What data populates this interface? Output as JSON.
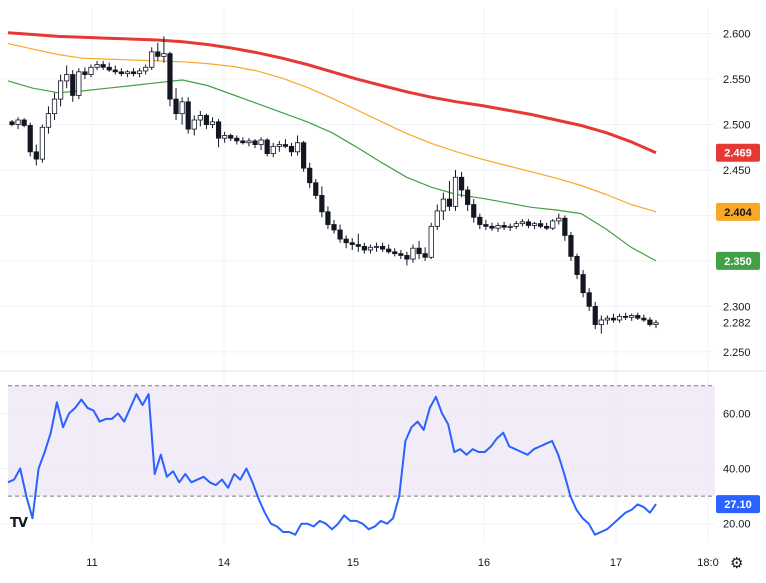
{
  "chart_data": [
    {
      "type": "candlestick",
      "title": "",
      "ylim": [
        2.23,
        2.615
      ],
      "y_ticks": [
        "2.600",
        "2.550",
        "2.500",
        "2.450",
        "2.400",
        "2.350",
        "2.300",
        "2.282",
        "2.250"
      ],
      "x_ticks": [
        "11",
        "14",
        "15",
        "16",
        "17",
        "18:0"
      ],
      "candles": [
        [
          2.503,
          2.505,
          2.498,
          2.5
        ],
        [
          2.5,
          2.508,
          2.495,
          2.505
        ],
        [
          2.505,
          2.507,
          2.497,
          2.499
        ],
        [
          2.499,
          2.502,
          2.465,
          2.47
        ],
        [
          2.47,
          2.478,
          2.455,
          2.462
        ],
        [
          2.462,
          2.5,
          2.458,
          2.497
        ],
        [
          2.497,
          2.52,
          2.49,
          2.512
        ],
        [
          2.512,
          2.535,
          2.505,
          2.528
        ],
        [
          2.528,
          2.555,
          2.52,
          2.548
        ],
        [
          2.548,
          2.565,
          2.54,
          2.555
        ],
        [
          2.555,
          2.56,
          2.525,
          2.532
        ],
        [
          2.532,
          2.562,
          2.528,
          2.558
        ],
        [
          2.558,
          2.563,
          2.55,
          2.555
        ],
        [
          2.555,
          2.566,
          2.552,
          2.563
        ],
        [
          2.563,
          2.57,
          2.56,
          2.566
        ],
        [
          2.566,
          2.57,
          2.56,
          2.563
        ],
        [
          2.563,
          2.568,
          2.558,
          2.56
        ],
        [
          2.56,
          2.565,
          2.555,
          2.558
        ],
        [
          2.558,
          2.562,
          2.553,
          2.556
        ],
        [
          2.556,
          2.56,
          2.552,
          2.558
        ],
        [
          2.558,
          2.562,
          2.553,
          2.556
        ],
        [
          2.556,
          2.562,
          2.552,
          2.559
        ],
        [
          2.559,
          2.566,
          2.555,
          2.563
        ],
        [
          2.563,
          2.585,
          2.56,
          2.58
        ],
        [
          2.58,
          2.59,
          2.57,
          2.575
        ],
        [
          2.575,
          2.597,
          2.568,
          2.578
        ],
        [
          2.578,
          2.58,
          2.52,
          2.528
        ],
        [
          2.528,
          2.54,
          2.505,
          2.512
        ],
        [
          2.512,
          2.53,
          2.5,
          2.525
        ],
        [
          2.525,
          2.53,
          2.49,
          2.495
        ],
        [
          2.495,
          2.51,
          2.488,
          2.505
        ],
        [
          2.505,
          2.515,
          2.498,
          2.51
        ],
        [
          2.51,
          2.512,
          2.495,
          2.5
        ],
        [
          2.5,
          2.508,
          2.496,
          2.503
        ],
        [
          2.503,
          2.506,
          2.475,
          2.485
        ],
        [
          2.485,
          2.492,
          2.48,
          2.488
        ],
        [
          2.488,
          2.49,
          2.482,
          2.485
        ],
        [
          2.485,
          2.488,
          2.478,
          2.482
        ],
        [
          2.482,
          2.486,
          2.478,
          2.48
        ],
        [
          2.48,
          2.485,
          2.476,
          2.482
        ],
        [
          2.482,
          2.484,
          2.474,
          2.478
        ],
        [
          2.478,
          2.486,
          2.472,
          2.483
        ],
        [
          2.483,
          2.485,
          2.465,
          2.468
        ],
        [
          2.468,
          2.48,
          2.464,
          2.476
        ],
        [
          2.476,
          2.482,
          2.47,
          2.478
        ],
        [
          2.478,
          2.484,
          2.474,
          2.476
        ],
        [
          2.476,
          2.48,
          2.465,
          2.47
        ],
        [
          2.47,
          2.488,
          2.466,
          2.48
        ],
        [
          2.48,
          2.482,
          2.448,
          2.452
        ],
        [
          2.452,
          2.458,
          2.43,
          2.436
        ],
        [
          2.436,
          2.44,
          2.418,
          2.422
        ],
        [
          2.422,
          2.432,
          2.398,
          2.404
        ],
        [
          2.404,
          2.41,
          2.385,
          2.39
        ],
        [
          2.39,
          2.395,
          2.38,
          2.384
        ],
        [
          2.384,
          2.39,
          2.37,
          2.374
        ],
        [
          2.374,
          2.378,
          2.364,
          2.37
        ],
        [
          2.37,
          2.375,
          2.362,
          2.368
        ],
        [
          2.368,
          2.38,
          2.36,
          2.366
        ],
        [
          2.366,
          2.37,
          2.358,
          2.362
        ],
        [
          2.362,
          2.368,
          2.358,
          2.365
        ],
        [
          2.365,
          2.37,
          2.36,
          2.366
        ],
        [
          2.366,
          2.37,
          2.36,
          2.363
        ],
        [
          2.363,
          2.368,
          2.358,
          2.36
        ],
        [
          2.36,
          2.364,
          2.355,
          2.358
        ],
        [
          2.358,
          2.362,
          2.352,
          2.356
        ],
        [
          2.356,
          2.36,
          2.345,
          2.352
        ],
        [
          2.352,
          2.368,
          2.348,
          2.364
        ],
        [
          2.364,
          2.372,
          2.352,
          2.358
        ],
        [
          2.358,
          2.365,
          2.35,
          2.354
        ],
        [
          2.354,
          2.392,
          2.352,
          2.388
        ],
        [
          2.388,
          2.412,
          2.384,
          2.405
        ],
        [
          2.405,
          2.425,
          2.395,
          2.418
        ],
        [
          2.418,
          2.438,
          2.405,
          2.41
        ],
        [
          2.41,
          2.45,
          2.405,
          2.442
        ],
        [
          2.442,
          2.448,
          2.42,
          2.428
        ],
        [
          2.428,
          2.432,
          2.405,
          2.412
        ],
        [
          2.412,
          2.418,
          2.392,
          2.398
        ],
        [
          2.398,
          2.402,
          2.385,
          2.39
        ],
        [
          2.39,
          2.395,
          2.384,
          2.388
        ],
        [
          2.388,
          2.392,
          2.383,
          2.386
        ],
        [
          2.386,
          2.392,
          2.382,
          2.389
        ],
        [
          2.389,
          2.393,
          2.384,
          2.387
        ],
        [
          2.387,
          2.391,
          2.383,
          2.388
        ],
        [
          2.388,
          2.394,
          2.385,
          2.391
        ],
        [
          2.391,
          2.396,
          2.388,
          2.393
        ],
        [
          2.393,
          2.396,
          2.386,
          2.389
        ],
        [
          2.389,
          2.393,
          2.385,
          2.391
        ],
        [
          2.391,
          2.395,
          2.386,
          2.388
        ],
        [
          2.388,
          2.392,
          2.384,
          2.386
        ],
        [
          2.386,
          2.396,
          2.384,
          2.394
        ],
        [
          2.394,
          2.402,
          2.39,
          2.397
        ],
        [
          2.397,
          2.4,
          2.372,
          2.378
        ],
        [
          2.378,
          2.382,
          2.35,
          2.355
        ],
        [
          2.355,
          2.358,
          2.33,
          2.335
        ],
        [
          2.335,
          2.34,
          2.31,
          2.315
        ],
        [
          2.315,
          2.32,
          2.295,
          2.3
        ],
        [
          2.3,
          2.305,
          2.275,
          2.28
        ],
        [
          2.28,
          2.29,
          2.27,
          2.285
        ],
        [
          2.285,
          2.29,
          2.28,
          2.287
        ],
        [
          2.287,
          2.292,
          2.282,
          2.285
        ],
        [
          2.285,
          2.292,
          2.282,
          2.289
        ],
        [
          2.289,
          2.293,
          2.285,
          2.288
        ],
        [
          2.288,
          2.292,
          2.284,
          2.29
        ],
        [
          2.29,
          2.293,
          2.285,
          2.287
        ],
        [
          2.287,
          2.291,
          2.283,
          2.285
        ],
        [
          2.285,
          2.288,
          2.278,
          2.28
        ],
        [
          2.28,
          2.285,
          2.276,
          2.282
        ]
      ],
      "series": [
        {
          "color": "#e53935",
          "badge": "2.469",
          "values": [
            2.601,
            2.599,
            2.597,
            2.596,
            2.595,
            2.594,
            2.593,
            2.591,
            2.588,
            2.584,
            2.579,
            2.573,
            2.566,
            2.558,
            2.55,
            2.543,
            2.536,
            2.53,
            2.525,
            2.521,
            2.516,
            2.511,
            2.505,
            2.499,
            2.491,
            2.481,
            2.469
          ]
        },
        {
          "color": "#f9a825",
          "badge": "2.404",
          "values": [
            2.589,
            2.583,
            2.577,
            2.573,
            2.572,
            2.571,
            2.57,
            2.569,
            2.567,
            2.564,
            2.559,
            2.551,
            2.541,
            2.529,
            2.516,
            2.503,
            2.49,
            2.479,
            2.47,
            2.462,
            2.455,
            2.448,
            2.441,
            2.433,
            2.423,
            2.412,
            2.404
          ]
        },
        {
          "color": "#43a047",
          "badge": "2.350",
          "values": [
            2.548,
            2.54,
            2.535,
            2.537,
            2.54,
            2.543,
            2.546,
            2.549,
            2.543,
            2.533,
            2.523,
            2.513,
            2.503,
            2.491,
            2.475,
            2.458,
            2.442,
            2.431,
            2.423,
            2.419,
            2.414,
            2.409,
            2.406,
            2.402,
            2.385,
            2.365,
            2.35
          ]
        }
      ]
    },
    {
      "type": "line",
      "title": "",
      "ylim": [
        13,
        75
      ],
      "y_ticks": [
        "60.00",
        "40.00",
        "20.00"
      ],
      "bands": [
        70,
        30
      ],
      "badge": "27.10",
      "series": [
        {
          "color": "#2962ff",
          "values": [
            35,
            36,
            40,
            30,
            22,
            40,
            46,
            53,
            64,
            55,
            60,
            62,
            65,
            62,
            61,
            57,
            58,
            58,
            60,
            57,
            62,
            67,
            63,
            67,
            38,
            45,
            37,
            39,
            35,
            38,
            35,
            36,
            37,
            35,
            34,
            36,
            33,
            38,
            36,
            40,
            35,
            29,
            24,
            20,
            19,
            17,
            17,
            16,
            20,
            20,
            19,
            21,
            20,
            18,
            20,
            23,
            21,
            21,
            20,
            18,
            19,
            21,
            20,
            22,
            30,
            50,
            55,
            57,
            54,
            62,
            66,
            60,
            56,
            46,
            47,
            45,
            47,
            46,
            46,
            48,
            51,
            53,
            48,
            47,
            46,
            45,
            47,
            48,
            49,
            50,
            45,
            38,
            30,
            25,
            22,
            20,
            16,
            17,
            18,
            20,
            22,
            24,
            25,
            27,
            26,
            24,
            27.1
          ]
        }
      ]
    }
  ]
}
